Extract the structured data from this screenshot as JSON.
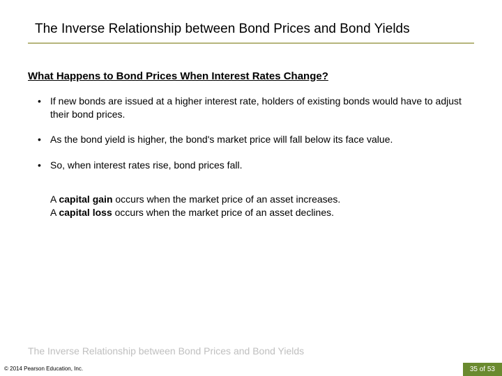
{
  "title": "The Inverse Relationship between Bond Prices and Bond Yields",
  "subheading": "What Happens to Bond Prices When Interest Rates Change?",
  "bullets": [
    "If new bonds are issued at a higher interest rate, holders of existing bonds would have to adjust their bond prices.",
    "As the bond yield is higher, the bond's market price will fall below its face value.",
    "So, when interest rates rise, bond prices fall."
  ],
  "definitions": [
    {
      "prefix": "A ",
      "term": "capital gain",
      "rest": " occurs when the market price of an asset increases."
    },
    {
      "prefix": "A ",
      "term": "capital loss",
      "rest": " occurs when the market price of an asset declines."
    }
  ],
  "footer_topic": "The Inverse Relationship between Bond Prices and Bond Yields",
  "copyright": "© 2014 Pearson Education, Inc.",
  "page_current": 35,
  "page_total": 53,
  "page_of": "of",
  "colors": {
    "title_underline": "#b6b57b",
    "footer_text": "#bfbfbf",
    "badge_bg": "#6a8a2f",
    "badge_fg": "#ffffff"
  }
}
